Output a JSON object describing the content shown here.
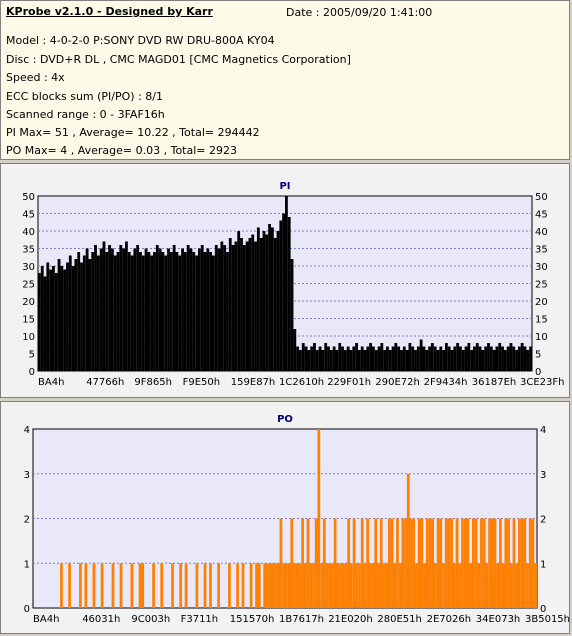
{
  "header": {
    "title": "KProbe v2.1.0 - Designed by Karr",
    "date": "Date : 2005/09/20 1:41:00",
    "lines": [
      "Model : 4-0-2-0 P:SONY    DVD RW DRU-800A  KY04",
      "Disc : DVD+R DL , CMC MAGD01 [CMC Magnetics Corporation]",
      "Speed : 4x",
      "ECC blocks sum (PI/PO) : 8/1",
      "Scanned range : 0 - 3FAF16h",
      "PI Max= 51 , Average= 10.22 , Total= 294442",
      "PO Max= 4 , Average= 0.03 , Total= 2923"
    ]
  },
  "colors": {
    "pi_bar": "#000000",
    "po_bar": "#ff7f00",
    "plot_bg": "#e8e8f8",
    "grid": "#8080c0"
  },
  "chart_data": [
    {
      "type": "bar",
      "title": "PI",
      "ylim": [
        0,
        50
      ],
      "yticks": [
        0,
        5,
        10,
        15,
        20,
        25,
        30,
        35,
        40,
        45,
        50
      ],
      "xticks": [
        "BA4h",
        "47766h",
        "9F865h",
        "F9E50h",
        "159E87h",
        "1C2610h",
        "229F01h",
        "290E72h",
        "2F9434h",
        "36187Eh",
        "3CE23Fh"
      ],
      "grid": true,
      "series": [
        {
          "values": [
            28,
            30,
            27,
            31,
            29,
            30,
            28,
            32,
            30,
            29,
            31,
            33,
            30,
            32,
            34,
            31,
            33,
            35,
            32,
            34,
            36,
            33,
            35,
            37,
            34,
            36,
            35,
            33,
            34,
            36,
            35,
            37,
            34,
            33,
            35,
            36,
            34,
            33,
            35,
            34,
            33,
            34,
            36,
            35,
            34,
            33,
            35,
            34,
            36,
            34,
            33,
            35,
            34,
            36,
            35,
            34,
            33,
            35,
            36,
            34,
            35,
            34,
            33,
            36,
            35,
            37,
            36,
            34,
            38,
            36,
            37,
            40,
            38,
            36,
            37,
            38,
            39,
            37,
            41,
            38,
            40,
            39,
            42,
            41,
            38,
            40,
            43,
            45,
            50,
            44,
            32,
            12,
            7,
            6,
            8,
            7,
            6,
            7,
            8,
            6,
            7,
            6,
            8,
            7,
            6,
            7,
            6,
            8,
            7,
            6,
            7,
            6,
            7,
            8,
            6,
            7,
            6,
            7,
            8,
            7,
            6,
            7,
            8,
            6,
            7,
            6,
            7,
            8,
            7,
            6,
            7,
            6,
            8,
            7,
            6,
            7,
            9,
            7,
            6,
            7,
            8,
            7,
            6,
            7,
            6,
            8,
            7,
            6,
            7,
            8,
            7,
            6,
            7,
            8,
            6,
            7,
            8,
            7,
            6,
            7,
            8,
            7,
            6,
            7,
            8,
            7,
            6,
            7,
            8,
            7,
            6,
            7,
            8,
            7,
            6,
            7
          ]
        }
      ]
    },
    {
      "type": "bar",
      "title": "PO",
      "ylim": [
        0,
        4
      ],
      "yticks": [
        0,
        1,
        2,
        3,
        4
      ],
      "xticks": [
        "BA4h",
        "46031h",
        "9C003h",
        "F3711h",
        "151570h",
        "1B7617h",
        "21E020h",
        "280E51h",
        "2E7026h",
        "34E073h",
        "3B5015h"
      ],
      "grid": true,
      "series": [
        {
          "values": [
            0,
            0,
            0,
            0,
            0,
            0,
            0,
            0,
            0,
            0,
            1,
            0,
            0,
            1,
            0,
            0,
            0,
            1,
            0,
            1,
            0,
            0,
            1,
            0,
            0,
            1,
            0,
            0,
            0,
            1,
            0,
            0,
            1,
            0,
            0,
            0,
            1,
            0,
            0,
            1,
            1,
            0,
            0,
            0,
            1,
            0,
            0,
            1,
            0,
            0,
            0,
            1,
            0,
            0,
            1,
            0,
            1,
            0,
            0,
            0,
            1,
            0,
            0,
            1,
            0,
            1,
            0,
            0,
            1,
            0,
            0,
            0,
            1,
            0,
            0,
            1,
            0,
            1,
            0,
            0,
            1,
            0,
            1,
            1,
            0,
            1,
            1,
            1,
            1,
            1,
            1,
            2,
            1,
            1,
            1,
            2,
            1,
            1,
            1,
            2,
            1,
            2,
            1,
            1,
            2,
            4,
            1,
            2,
            1,
            1,
            1,
            2,
            1,
            1,
            1,
            1,
            2,
            1,
            2,
            1,
            1,
            2,
            1,
            2,
            1,
            1,
            2,
            1,
            2,
            1,
            1,
            2,
            2,
            1,
            2,
            1,
            2,
            2,
            3,
            2,
            2,
            1,
            2,
            2,
            1,
            2,
            2,
            2,
            1,
            2,
            2,
            1,
            2,
            2,
            2,
            1,
            2,
            1,
            2,
            2,
            2,
            1,
            2,
            2,
            1,
            2,
            2,
            1,
            2,
            2,
            2,
            1,
            2,
            1,
            2,
            2,
            1,
            2,
            1,
            2,
            2,
            2,
            1,
            2,
            2,
            1
          ]
        }
      ]
    }
  ]
}
